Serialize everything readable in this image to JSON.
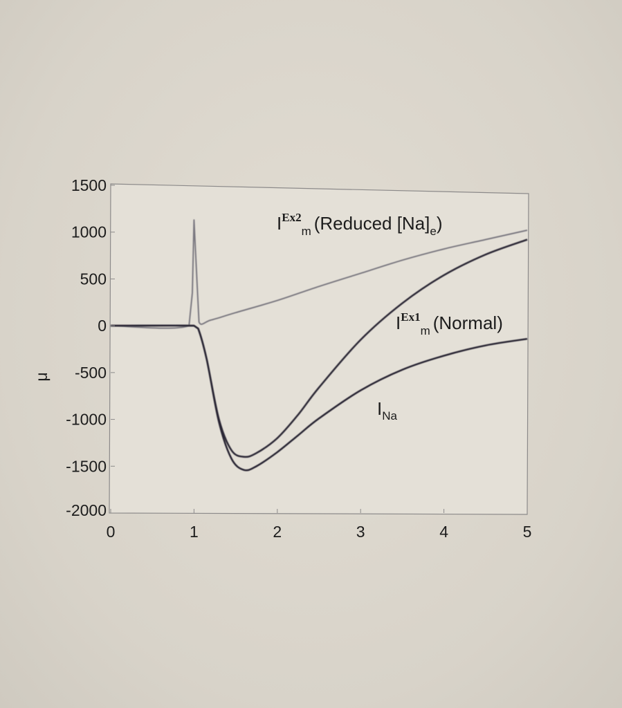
{
  "chart_data": {
    "type": "line",
    "ylabel": "μ",
    "xlim": [
      0,
      5
    ],
    "ylim": [
      -2000,
      1500
    ],
    "x_ticks": [
      "0",
      "1",
      "2",
      "3",
      "4",
      "5"
    ],
    "y_ticks": [
      "1500",
      "1000",
      "500",
      "0",
      "-500",
      "-1000",
      "-1500",
      "-2000"
    ],
    "grid": false,
    "series": [
      {
        "name": "I^Ex2_m (Reduced [Na]_e)",
        "color": "#7a7880",
        "x": [
          0,
          0.94,
          0.98,
          1.0,
          1.04,
          1.06,
          1.2,
          1.5,
          2.0,
          2.5,
          3.0,
          3.5,
          4.0,
          4.5,
          5.0
        ],
        "y": [
          0,
          0,
          350,
          1130,
          400,
          40,
          60,
          140,
          270,
          420,
          560,
          700,
          820,
          920,
          1020
        ]
      },
      {
        "name": "I^Ex1_m (Normal)",
        "color": "#2e2c38",
        "x": [
          0,
          1.0,
          1.05,
          1.15,
          1.3,
          1.45,
          1.6,
          1.75,
          2.0,
          2.25,
          2.5,
          3.0,
          3.5,
          4.0,
          4.5,
          5.0
        ],
        "y": [
          0,
          0,
          -30,
          -350,
          -1000,
          -1330,
          -1400,
          -1360,
          -1200,
          -950,
          -660,
          -150,
          240,
          540,
          760,
          920
        ]
      },
      {
        "name": "I_Na",
        "color": "#2a2834",
        "x": [
          0,
          1.0,
          1.05,
          1.15,
          1.3,
          1.45,
          1.6,
          1.75,
          2.0,
          2.25,
          2.5,
          3.0,
          3.5,
          4.0,
          4.5,
          5.0
        ],
        "y": [
          0,
          0,
          -30,
          -350,
          -1030,
          -1420,
          -1540,
          -1500,
          -1350,
          -1170,
          -990,
          -690,
          -470,
          -320,
          -210,
          -140
        ]
      }
    ],
    "annotations": [
      {
        "main": "I",
        "sup": "Ex2",
        "sub": "m",
        "rest": "(Reduced [Na]",
        "rest_sub": "e",
        "close": ")"
      },
      {
        "main": "I",
        "sup": "Ex1",
        "sub": "m",
        "rest": "(Normal)"
      },
      {
        "main": "I",
        "sub": "Na"
      }
    ]
  }
}
